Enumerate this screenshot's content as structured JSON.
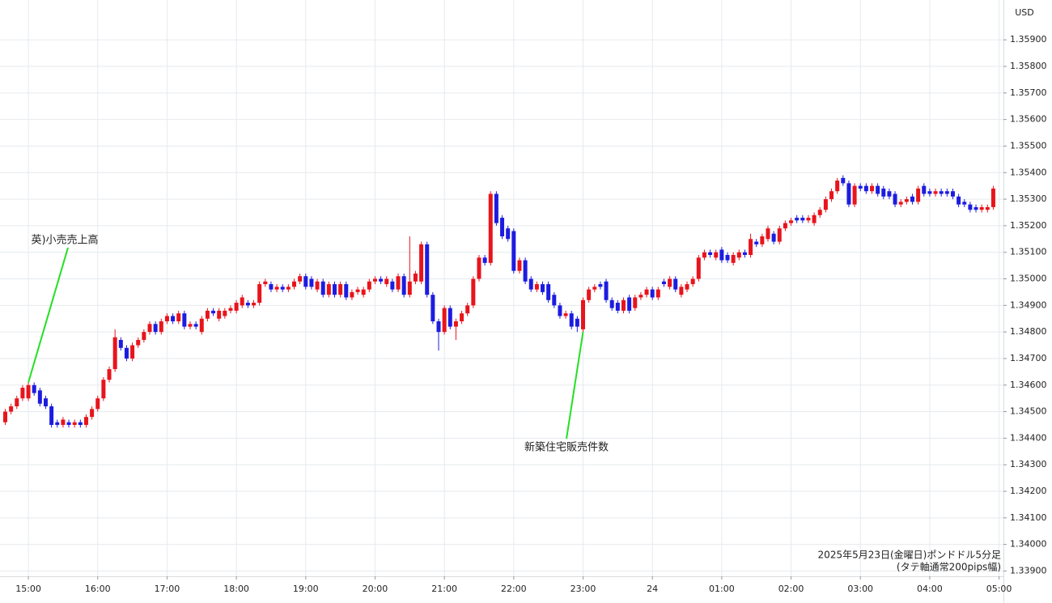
{
  "chart_data": {
    "type": "candlestick",
    "currency": "USD",
    "note": [
      "2025年5月23日(金曜日)ポンドドル5分足",
      "(タテ軸通常200pips幅)"
    ],
    "annotations": [
      {
        "text": "英)小売売上高",
        "at": "15:00"
      },
      {
        "text": "新築住宅販売件数",
        "at": "23:00"
      }
    ],
    "up_color": "#e8141c",
    "down_color": "#1c1ce0",
    "grid": true,
    "ylim": [
      1.3388,
      1.3605
    ],
    "yticks": [
      {
        "value": 1.339,
        "label": "1.33900"
      },
      {
        "value": 1.34,
        "label": "1.34000"
      },
      {
        "value": 1.341,
        "label": "1.34100"
      },
      {
        "value": 1.342,
        "label": "1.34200"
      },
      {
        "value": 1.343,
        "label": "1.34300"
      },
      {
        "value": 1.344,
        "label": "1.34400"
      },
      {
        "value": 1.345,
        "label": "1.34500"
      },
      {
        "value": 1.346,
        "label": "1.34600"
      },
      {
        "value": 1.347,
        "label": "1.34700"
      },
      {
        "value": 1.348,
        "label": "1.34800"
      },
      {
        "value": 1.349,
        "label": "1.34900"
      },
      {
        "value": 1.35,
        "label": "1.35000"
      },
      {
        "value": 1.351,
        "label": "1.35100"
      },
      {
        "value": 1.352,
        "label": "1.35200"
      },
      {
        "value": 1.353,
        "label": "1.35300"
      },
      {
        "value": 1.354,
        "label": "1.35400"
      },
      {
        "value": 1.355,
        "label": "1.35500"
      },
      {
        "value": 1.356,
        "label": "1.35600"
      },
      {
        "value": 1.357,
        "label": "1.35700"
      },
      {
        "value": 1.358,
        "label": "1.35800"
      },
      {
        "value": 1.359,
        "label": "1.35900"
      }
    ],
    "categories": [
      null,
      null,
      null,
      null,
      "15:00",
      null,
      null,
      null,
      null,
      null,
      null,
      null,
      null,
      null,
      null,
      null,
      "16:00",
      null,
      null,
      null,
      null,
      null,
      null,
      null,
      null,
      null,
      null,
      null,
      "17:00",
      null,
      null,
      null,
      null,
      null,
      null,
      null,
      null,
      null,
      null,
      null,
      "18:00",
      null,
      null,
      null,
      null,
      null,
      null,
      null,
      null,
      null,
      null,
      null,
      "19:00",
      null,
      null,
      null,
      null,
      null,
      null,
      null,
      null,
      null,
      null,
      null,
      "20:00",
      null,
      null,
      null,
      null,
      null,
      null,
      null,
      null,
      null,
      null,
      null,
      "21:00",
      null,
      null,
      null,
      null,
      null,
      null,
      null,
      null,
      null,
      null,
      null,
      "22:00",
      null,
      null,
      null,
      null,
      null,
      null,
      null,
      null,
      null,
      null,
      null,
      "23:00",
      null,
      null,
      null,
      null,
      null,
      null,
      null,
      null,
      null,
      null,
      null,
      "24",
      null,
      null,
      null,
      null,
      null,
      null,
      null,
      null,
      null,
      null,
      null,
      "01:00",
      null,
      null,
      null,
      null,
      null,
      null,
      null,
      null,
      null,
      null,
      null,
      "02:00",
      null,
      null,
      null,
      null,
      null,
      null,
      null,
      null,
      null,
      null,
      null,
      "03:00",
      null,
      null,
      null,
      null,
      null,
      null,
      null,
      null,
      null,
      null,
      null,
      "04:00",
      null,
      null,
      null,
      null,
      null,
      null,
      null,
      null,
      null,
      null,
      null,
      "05:00"
    ],
    "open": [
      1.3446,
      1.345,
      1.3452,
      1.3455,
      1.3455,
      1.346,
      1.3458,
      1.3455,
      1.3452,
      1.3446,
      1.3445,
      1.3446,
      1.3445,
      1.3446,
      1.3445,
      1.3448,
      1.3451,
      1.3455,
      1.3462,
      1.3466,
      1.3477,
      1.3474,
      1.347,
      1.3475,
      1.3477,
      1.348,
      1.3483,
      1.348,
      1.3484,
      1.3486,
      1.3484,
      1.3487,
      1.3482,
      1.3483,
      1.348,
      1.3485,
      1.3488,
      1.3485,
      1.3486,
      1.3488,
      1.3488,
      1.349,
      1.3491,
      1.349,
      1.3491,
      1.3498,
      1.3498,
      1.3496,
      1.3497,
      1.3496,
      1.3497,
      1.3499,
      1.3501,
      1.35,
      1.3496,
      1.3499,
      1.3494,
      1.3498,
      1.3494,
      1.3498,
      1.3493,
      1.3495,
      1.3494,
      1.3496,
      1.3499,
      1.35,
      1.3498,
      1.3499,
      1.3496,
      1.3501,
      1.3494,
      1.3499,
      1.3499,
      1.3513,
      1.3494,
      1.3484,
      1.348,
      1.3489,
      1.3482,
      1.3484,
      1.3487,
      1.349,
      1.35,
      1.3508,
      1.3506,
      1.3532,
      1.3523,
      1.3519,
      1.3518,
      1.3503,
      1.3507,
      1.35,
      1.3496,
      1.3498,
      1.3498,
      1.3494,
      1.349,
      1.3486,
      1.3487,
      1.3485,
      1.3481,
      1.3492,
      1.3496,
      1.3498,
      1.3499,
      1.3492,
      1.3491,
      1.3488,
      1.3493,
      1.3489,
      1.3493,
      1.3494,
      1.3496,
      1.3493,
      1.3499,
      1.3497,
      1.35,
      1.3494,
      1.3496,
      1.3498,
      1.35,
      1.3508,
      1.351,
      1.3508,
      1.3511,
      1.3509,
      1.3506,
      1.3508,
      1.351,
      1.3509,
      1.3514,
      1.3513,
      1.3515,
      1.3517,
      1.3514,
      1.3519,
      1.3521,
      1.3523,
      1.3523,
      1.3522,
      1.3521,
      1.3524,
      1.3526,
      1.353,
      1.3533,
      1.3538,
      1.3536,
      1.3528,
      1.3535,
      1.3535,
      1.3533,
      1.3535,
      1.3534,
      1.3533,
      1.3532,
      1.3528,
      1.3529,
      1.3531,
      1.3529,
      1.3535,
      1.3533,
      1.3532,
      1.3533,
      1.3533,
      1.3533,
      1.3531,
      1.3529,
      1.3528,
      1.3527,
      1.3526,
      1.3526,
      1.3527,
      null
    ],
    "high": [
      1.3451,
      1.3453,
      1.3456,
      1.346,
      1.3461,
      1.3461,
      1.3459,
      1.3456,
      1.3453,
      1.3447,
      1.3448,
      1.3447,
      1.3447,
      1.3447,
      1.3449,
      1.3452,
      1.3456,
      1.3463,
      1.3467,
      1.3481,
      1.3478,
      1.3475,
      1.3476,
      1.3478,
      1.3481,
      1.3484,
      1.3484,
      1.3485,
      1.3487,
      1.3487,
      1.3488,
      1.3488,
      1.3484,
      1.3484,
      1.3486,
      1.3489,
      1.3489,
      1.3489,
      1.3489,
      1.349,
      1.3492,
      1.3494,
      1.3492,
      1.3492,
      1.3499,
      1.35,
      1.3499,
      1.3498,
      1.3498,
      1.3498,
      1.35,
      1.3502,
      1.3502,
      1.3501,
      1.35,
      1.35,
      1.3499,
      1.3499,
      1.3499,
      1.3499,
      1.3496,
      1.3497,
      1.3497,
      1.35,
      1.3501,
      1.3501,
      1.3501,
      1.35,
      1.3502,
      1.3502,
      1.3516,
      1.3503,
      1.3514,
      1.3514,
      1.3495,
      1.3485,
      1.349,
      1.349,
      1.3485,
      1.3488,
      1.3491,
      1.3501,
      1.3509,
      1.3509,
      1.3533,
      1.3533,
      1.3524,
      1.352,
      1.3519,
      1.3508,
      1.3508,
      1.3501,
      1.3499,
      1.3499,
      1.3499,
      1.3495,
      1.3491,
      1.3488,
      1.3488,
      1.3486,
      1.3493,
      1.3497,
      1.3498,
      1.3499,
      1.35,
      1.3493,
      1.3492,
      1.3493,
      1.3494,
      1.3494,
      1.3495,
      1.3497,
      1.3497,
      1.3497,
      1.35,
      1.3501,
      1.3501,
      1.3498,
      1.3499,
      1.3501,
      1.3509,
      1.3511,
      1.3511,
      1.3511,
      1.3512,
      1.351,
      1.351,
      1.3511,
      1.3511,
      1.3517,
      1.3515,
      1.3517,
      1.352,
      1.3518,
      1.352,
      1.3522,
      1.3523,
      1.3524,
      1.3524,
      1.3524,
      1.3525,
      1.3527,
      1.3531,
      1.3534,
      1.3538,
      1.3539,
      1.3537,
      1.3536,
      1.3536,
      1.3536,
      1.3536,
      1.3536,
      1.3535,
      1.3534,
      1.3533,
      1.353,
      1.3531,
      1.3532,
      1.3535,
      1.3536,
      1.3534,
      1.3534,
      1.3534,
      1.3534,
      1.3534,
      1.3532,
      1.353,
      1.3529,
      1.3528,
      1.3528,
      1.3528,
      1.3535,
      null
    ],
    "low": [
      1.3445,
      1.3449,
      1.3451,
      1.3454,
      1.3454,
      1.3456,
      1.3452,
      1.3451,
      1.3444,
      1.3444,
      1.3444,
      1.3444,
      1.3444,
      1.3444,
      1.3444,
      1.3447,
      1.345,
      1.3454,
      1.3461,
      1.3465,
      1.3473,
      1.3469,
      1.3469,
      1.3474,
      1.3476,
      1.3479,
      1.3479,
      1.3479,
      1.3483,
      1.3483,
      1.3483,
      1.3481,
      1.3481,
      1.3481,
      1.3479,
      1.3484,
      1.3486,
      1.3484,
      1.3485,
      1.3487,
      1.3487,
      1.3489,
      1.3489,
      1.3489,
      1.349,
      1.3497,
      1.3495,
      1.3495,
      1.3495,
      1.3495,
      1.3496,
      1.3498,
      1.3496,
      1.3496,
      1.3495,
      1.3493,
      1.3493,
      1.3493,
      1.3493,
      1.3492,
      1.3492,
      1.3494,
      1.3493,
      1.3495,
      1.3498,
      1.3498,
      1.3497,
      1.3495,
      1.3495,
      1.3493,
      1.3493,
      1.3498,
      1.3498,
      1.3493,
      1.3483,
      1.3473,
      1.3479,
      1.3481,
      1.3477,
      1.3483,
      1.3486,
      1.3489,
      1.3499,
      1.3505,
      1.3505,
      1.352,
      1.3515,
      1.3514,
      1.3502,
      1.3502,
      1.3498,
      1.3495,
      1.3495,
      1.3494,
      1.3491,
      1.3489,
      1.3485,
      1.3485,
      1.3481,
      1.348,
      1.348,
      1.3491,
      1.3495,
      1.3496,
      1.3491,
      1.3488,
      1.3487,
      1.3487,
      1.3487,
      1.3488,
      1.3492,
      1.3493,
      1.3492,
      1.3492,
      1.3497,
      1.3496,
      1.3495,
      1.3493,
      1.3495,
      1.3497,
      1.3499,
      1.3507,
      1.3508,
      1.3507,
      1.3506,
      1.3506,
      1.3505,
      1.3507,
      1.3508,
      1.3508,
      1.3512,
      1.3512,
      1.3514,
      1.3513,
      1.3513,
      1.3518,
      1.352,
      1.3521,
      1.3521,
      1.3521,
      1.352,
      1.3523,
      1.3525,
      1.3529,
      1.3532,
      1.3535,
      1.3527,
      1.3527,
      1.3533,
      1.3532,
      1.3532,
      1.3531,
      1.353,
      1.353,
      1.3527,
      1.3527,
      1.3528,
      1.3528,
      1.3528,
      1.3531,
      1.3531,
      1.3531,
      1.3531,
      1.3531,
      1.353,
      1.3527,
      1.3527,
      1.3525,
      1.3525,
      1.3525,
      1.3525,
      1.3526,
      null
    ],
    "close": [
      1.345,
      1.3452,
      1.3455,
      1.3459,
      1.346,
      1.3457,
      1.3453,
      1.3452,
      1.3445,
      1.3445,
      1.3447,
      1.3445,
      1.3446,
      1.3445,
      1.3448,
      1.3451,
      1.3455,
      1.3462,
      1.3466,
      1.3478,
      1.3474,
      1.347,
      1.3475,
      1.3477,
      1.348,
      1.3483,
      1.348,
      1.3484,
      1.3486,
      1.3484,
      1.3487,
      1.3482,
      1.3483,
      1.3482,
      1.3485,
      1.3488,
      1.3487,
      1.3488,
      1.3488,
      1.3489,
      1.3491,
      1.3493,
      1.349,
      1.3491,
      1.3498,
      1.3499,
      1.3496,
      1.3497,
      1.3496,
      1.3497,
      1.3499,
      1.3501,
      1.3497,
      1.3497,
      1.3499,
      1.3494,
      1.3498,
      1.3494,
      1.3498,
      1.3493,
      1.3495,
      1.3496,
      1.3496,
      1.3499,
      1.35,
      1.3499,
      1.35,
      1.3496,
      1.3501,
      1.3494,
      1.3499,
      1.3502,
      1.3513,
      1.3494,
      1.3484,
      1.348,
      1.3489,
      1.3482,
      1.3484,
      1.3487,
      1.349,
      1.35,
      1.3508,
      1.3506,
      1.3532,
      1.3521,
      1.3516,
      1.3515,
      1.3503,
      1.3507,
      1.3499,
      1.3496,
      1.3498,
      1.3495,
      1.3492,
      1.349,
      1.3486,
      1.3487,
      1.3482,
      1.3482,
      1.3492,
      1.3496,
      1.3497,
      1.3497,
      1.3492,
      1.3489,
      1.3488,
      1.3492,
      1.3488,
      1.3493,
      1.3494,
      1.3496,
      1.3493,
      1.3496,
      1.3498,
      1.35,
      1.3496,
      1.3497,
      1.3498,
      1.35,
      1.3508,
      1.351,
      1.3509,
      1.351,
      1.3507,
      1.3507,
      1.3509,
      1.351,
      1.3509,
      1.3515,
      1.3513,
      1.3516,
      1.3519,
      1.3514,
      1.3519,
      1.3521,
      1.3522,
      1.3522,
      1.3522,
      1.3523,
      1.3524,
      1.3526,
      1.353,
      1.3533,
      1.3537,
      1.3536,
      1.3528,
      1.3535,
      1.3534,
      1.3533,
      1.3535,
      1.3532,
      1.3531,
      1.3531,
      1.3528,
      1.3529,
      1.353,
      1.3529,
      1.3534,
      1.3532,
      1.3532,
      1.3533,
      1.3532,
      1.3532,
      1.3531,
      1.3528,
      1.3528,
      1.3526,
      1.3526,
      1.3527,
      1.3527,
      1.3534,
      null
    ]
  }
}
